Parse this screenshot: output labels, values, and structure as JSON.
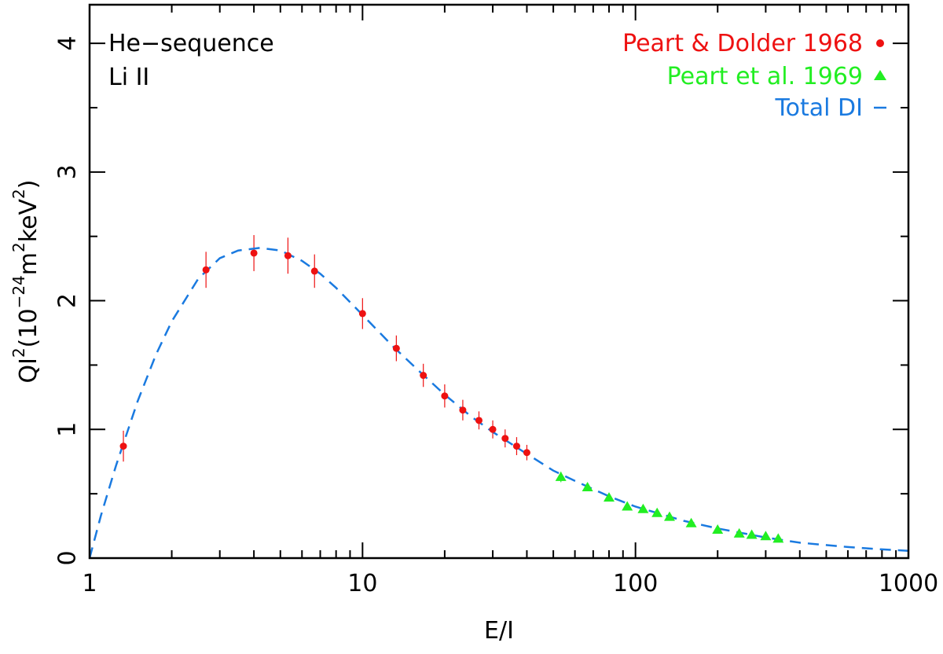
{
  "chart_data": {
    "type": "scatter",
    "xscale": "log",
    "xlim": [
      1,
      1000
    ],
    "ylim": [
      0,
      4.3
    ],
    "xlabel": "E/I",
    "ylabel": {
      "parts": [
        "QI",
        "2",
        "(10",
        "−24",
        "m",
        "2",
        "keV",
        "2",
        ")"
      ]
    },
    "grid": false,
    "x_ticks": [
      {
        "value": 1,
        "label": "1"
      },
      {
        "value": 10,
        "label": "10"
      },
      {
        "value": 100,
        "label": "100"
      },
      {
        "value": 1000,
        "label": "1000"
      }
    ],
    "y_ticks": [
      {
        "value": 0,
        "label": "0"
      },
      {
        "value": 1,
        "label": "1"
      },
      {
        "value": 2,
        "label": "2"
      },
      {
        "value": 3,
        "label": "3"
      },
      {
        "value": 4,
        "label": "4"
      }
    ],
    "annotations": [
      "He−sequence",
      "Li II"
    ],
    "legend_position": "top-right",
    "series": [
      {
        "name": "Peart & Dolder 1968",
        "marker": "circle",
        "color": "#ee1111",
        "points": [
          {
            "x": 1.33,
            "y": 0.87,
            "err": 0.12
          },
          {
            "x": 2.67,
            "y": 2.24,
            "err": 0.14
          },
          {
            "x": 4.0,
            "y": 2.37,
            "err": 0.14
          },
          {
            "x": 5.33,
            "y": 2.35,
            "err": 0.14
          },
          {
            "x": 6.67,
            "y": 2.23,
            "err": 0.13
          },
          {
            "x": 10.0,
            "y": 1.9,
            "err": 0.12
          },
          {
            "x": 13.3,
            "y": 1.63,
            "err": 0.1
          },
          {
            "x": 16.7,
            "y": 1.42,
            "err": 0.09
          },
          {
            "x": 20.0,
            "y": 1.26,
            "err": 0.09
          },
          {
            "x": 23.3,
            "y": 1.15,
            "err": 0.08
          },
          {
            "x": 26.7,
            "y": 1.07,
            "err": 0.07
          },
          {
            "x": 30.0,
            "y": 1.0,
            "err": 0.07
          },
          {
            "x": 33.3,
            "y": 0.93,
            "err": 0.07
          },
          {
            "x": 36.7,
            "y": 0.87,
            "err": 0.07
          },
          {
            "x": 40.0,
            "y": 0.82,
            "err": 0.06
          }
        ]
      },
      {
        "name": "Peart et al.  1969",
        "marker": "triangle",
        "color": "#22ee22",
        "points": [
          {
            "x": 53.3,
            "y": 0.63,
            "err": 0.04
          },
          {
            "x": 66.7,
            "y": 0.55,
            "err": 0.02
          },
          {
            "x": 80.0,
            "y": 0.47,
            "err": 0.02
          },
          {
            "x": 93.3,
            "y": 0.4,
            "err": 0.02
          },
          {
            "x": 106.7,
            "y": 0.38,
            "err": 0.02
          },
          {
            "x": 120.0,
            "y": 0.35,
            "err": 0.02
          },
          {
            "x": 133.3,
            "y": 0.32,
            "err": 0.02
          },
          {
            "x": 160.0,
            "y": 0.27,
            "err": 0.02
          },
          {
            "x": 200.0,
            "y": 0.22,
            "err": 0.02
          },
          {
            "x": 240.0,
            "y": 0.19,
            "err": 0.02
          },
          {
            "x": 266.7,
            "y": 0.18,
            "err": 0.02
          },
          {
            "x": 300.0,
            "y": 0.17,
            "err": 0.02
          },
          {
            "x": 333.3,
            "y": 0.15,
            "err": 0.02
          }
        ]
      },
      {
        "name": "Total DI",
        "marker": "dashed-line",
        "color": "#1a7ae0",
        "points": [
          {
            "x": 1.0,
            "y": 0.0
          },
          {
            "x": 1.1,
            "y": 0.33
          },
          {
            "x": 1.25,
            "y": 0.72
          },
          {
            "x": 1.5,
            "y": 1.22
          },
          {
            "x": 1.75,
            "y": 1.58
          },
          {
            "x": 2.0,
            "y": 1.84
          },
          {
            "x": 2.5,
            "y": 2.17
          },
          {
            "x": 3.0,
            "y": 2.33
          },
          {
            "x": 3.5,
            "y": 2.39
          },
          {
            "x": 4.2,
            "y": 2.41
          },
          {
            "x": 5.0,
            "y": 2.39
          },
          {
            "x": 6.0,
            "y": 2.31
          },
          {
            "x": 7.0,
            "y": 2.21
          },
          {
            "x": 8.0,
            "y": 2.1
          },
          {
            "x": 10.0,
            "y": 1.89
          },
          {
            "x": 13.0,
            "y": 1.64
          },
          {
            "x": 16.0,
            "y": 1.46
          },
          {
            "x": 20.0,
            "y": 1.27
          },
          {
            "x": 25.0,
            "y": 1.1
          },
          {
            "x": 30.0,
            "y": 0.98
          },
          {
            "x": 40.0,
            "y": 0.81
          },
          {
            "x": 50.0,
            "y": 0.68
          },
          {
            "x": 60.0,
            "y": 0.6
          },
          {
            "x": 80.0,
            "y": 0.48
          },
          {
            "x": 100.0,
            "y": 0.4
          },
          {
            "x": 150.0,
            "y": 0.29
          },
          {
            "x": 200.0,
            "y": 0.23
          },
          {
            "x": 300.0,
            "y": 0.16
          },
          {
            "x": 400.0,
            "y": 0.12
          },
          {
            "x": 600.0,
            "y": 0.086
          },
          {
            "x": 800.0,
            "y": 0.068
          },
          {
            "x": 1000.0,
            "y": 0.057
          }
        ]
      }
    ]
  }
}
